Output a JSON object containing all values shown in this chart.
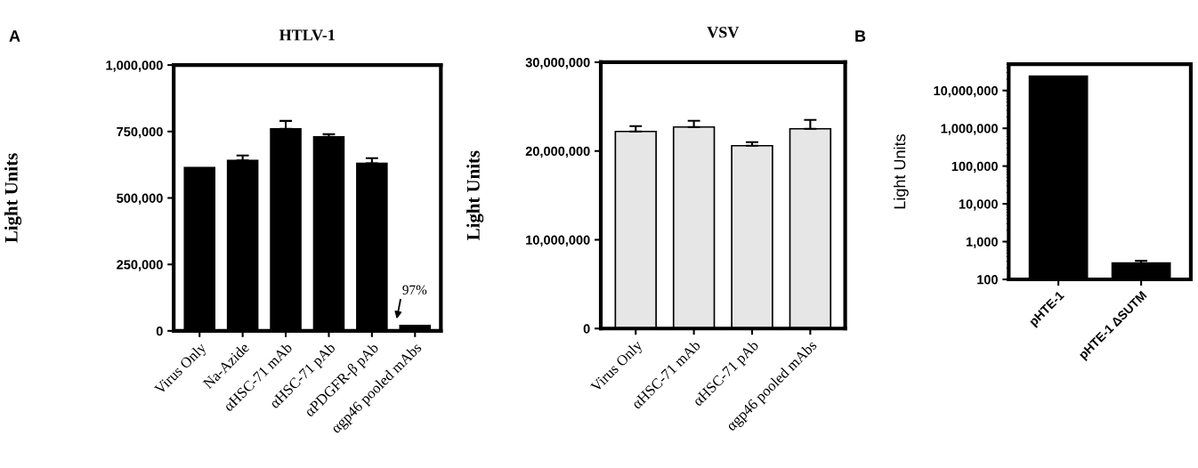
{
  "chart_data": [
    {
      "type": "bar",
      "title": "HTLV-1",
      "ylabel": "Light Units",
      "categories": [
        "Virus Only",
        "Na-Azide",
        "αHSC-71 mAb",
        "αHSC-71 pAb",
        "αPDGFR-β pAb",
        "αgp46 pooled mAbs"
      ],
      "values": [
        614000,
        641000,
        760000,
        730000,
        630000,
        20000
      ],
      "color": "#000000",
      "errors": [
        null,
        [
          641000,
          660000
        ],
        [
          760000,
          790000
        ],
        [
          730000,
          740000
        ],
        [
          630000,
          650000
        ],
        null
      ],
      "ylim": [
        0,
        1000000
      ],
      "yticks": [
        {
          "value": 0,
          "label": "0"
        },
        {
          "value": 250000,
          "label": "250,000"
        },
        {
          "value": 500000,
          "label": "500,000"
        },
        {
          "value": 750000,
          "label": "750,000"
        },
        {
          "value": 1000000,
          "label": "1,000,000"
        }
      ],
      "annotations": [
        "A",
        "97%"
      ],
      "grid": false,
      "legend": false
    },
    {
      "type": "bar",
      "title": "VSV",
      "ylabel": "Light Units",
      "categories": [
        "Virus Only",
        "αHSC-71 mAb",
        "αHSC-71 pAb",
        "αgp46 pooled mAbs"
      ],
      "values": [
        22200000,
        22700000,
        20600000,
        22500000
      ],
      "color": "#e6e6e6",
      "errors": [
        [
          22200000,
          22800000
        ],
        [
          22700000,
          23400000
        ],
        [
          20600000,
          21000000
        ],
        [
          22500000,
          23500000
        ]
      ],
      "ylim": [
        0,
        30000000
      ],
      "yticks": [
        {
          "value": 0,
          "label": "0"
        },
        {
          "value": 10000000,
          "label": "10,000,000"
        },
        {
          "value": 20000000,
          "label": "20,000,000"
        },
        {
          "value": 30000000,
          "label": "30,000,000"
        }
      ],
      "grid": false,
      "legend": false
    },
    {
      "type": "bar",
      "ylabel": "Light Units",
      "categories": [
        "pHTE-1",
        "pHTE-1 ΔSUTM"
      ],
      "values": [
        24000000,
        270
      ],
      "color": "#000000",
      "errors": [
        null,
        [
          270,
          313
        ]
      ],
      "log": true,
      "ylim": [
        100,
        50000000
      ],
      "yticks": [
        {
          "value": 100,
          "label": "100"
        },
        {
          "value": 1000,
          "label": "1,000"
        },
        {
          "value": 10000,
          "label": "10,000"
        },
        {
          "value": 100000,
          "label": "100,000"
        },
        {
          "value": 1000000,
          "label": "1,000,000"
        },
        {
          "value": 10000000,
          "label": "10,000,000"
        }
      ],
      "annotations": [
        "B"
      ],
      "grid": false,
      "legend": false
    }
  ]
}
